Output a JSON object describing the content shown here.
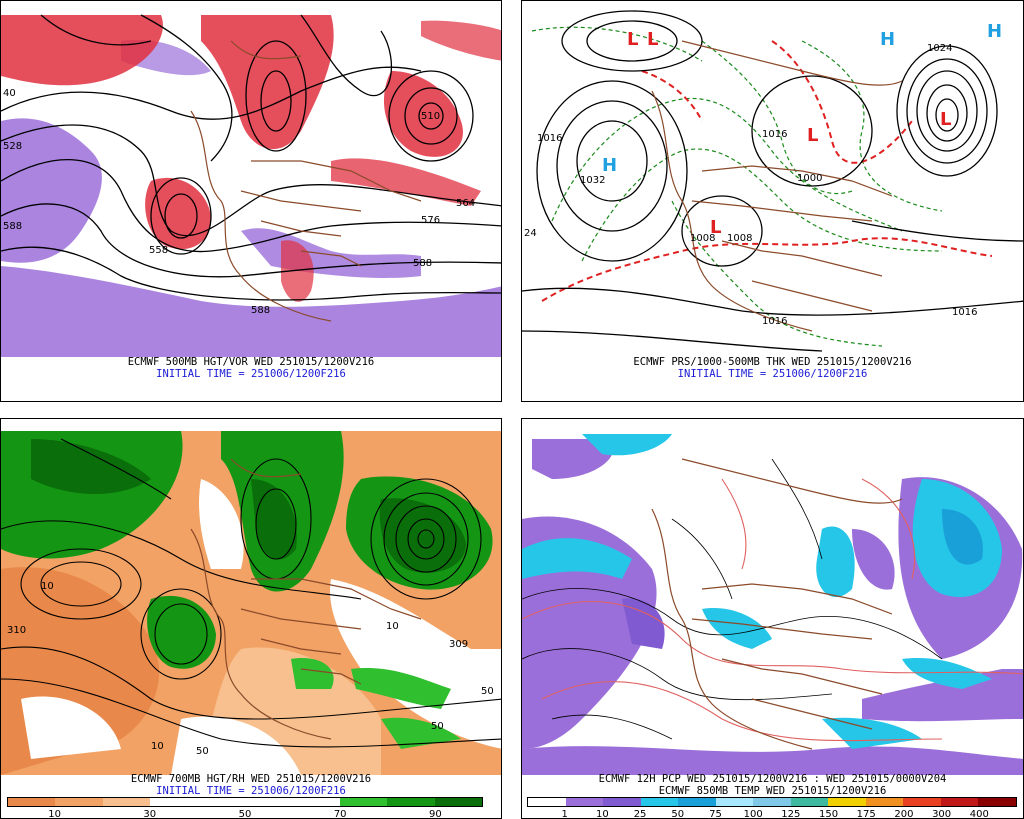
{
  "panels": [
    {
      "id": "p500",
      "caption": "ECMWF 500MB HGT/VOR WED 251015/1200V216",
      "initial": "INITIAL TIME = 251006/1200F216",
      "contour_labels": [
        "40",
        "528",
        "588",
        "558",
        "576",
        "564",
        "588",
        "588",
        "510"
      ]
    },
    {
      "id": "pprs",
      "caption": "ECMWF PRS/1000-500MB THK WED 251015/1200V216",
      "initial": "INITIAL TIME = 251006/1200F216",
      "highs": [
        "H",
        "H",
        "H"
      ],
      "lows": [
        "L",
        "L",
        "L",
        "L",
        "L"
      ],
      "contour_labels": [
        "1024",
        "1032",
        "1016",
        "1008",
        "1000",
        "1016",
        "1016",
        "1008",
        "1016",
        "24"
      ]
    },
    {
      "id": "p700",
      "caption": "ECMWF 700MB HGT/RH WED 251015/1200V216",
      "initial": "INITIAL TIME = 251006/1200F216",
      "legend": {
        "colors": [
          "#e8884a",
          "#f2a264",
          "#f7c08e",
          "#ffffff",
          "#ffffff",
          "#ffffff",
          "#ffffff",
          "#2fbf2f",
          "#149614",
          "#0a6e0a"
        ],
        "labels": [
          "10",
          "30",
          "50",
          "70",
          "90"
        ]
      },
      "contour_labels": [
        "310",
        "10",
        "10",
        "10",
        "50",
        "50",
        "50",
        "309"
      ]
    },
    {
      "id": "ppcp",
      "caption": "ECMWF 12H PCP WED 251015/1200V216 : WED 251015/0000V204",
      "caption2": "ECMWF 850MB TEMP WED 251015/1200V216",
      "legend": {
        "colors": [
          "#ffffff",
          "#9b6fd9",
          "#7f5ad1",
          "#26c6e8",
          "#1aa0d8",
          "#a8e8ff",
          "#7fc8e8",
          "#3fb8a0",
          "#f0d000",
          "#f09020",
          "#e84020",
          "#c01818",
          "#8a0000"
        ],
        "labels": [
          "1",
          "10",
          "25",
          "50",
          "75",
          "100",
          "125",
          "150",
          "175",
          "200",
          "300",
          "400"
        ]
      }
    }
  ]
}
